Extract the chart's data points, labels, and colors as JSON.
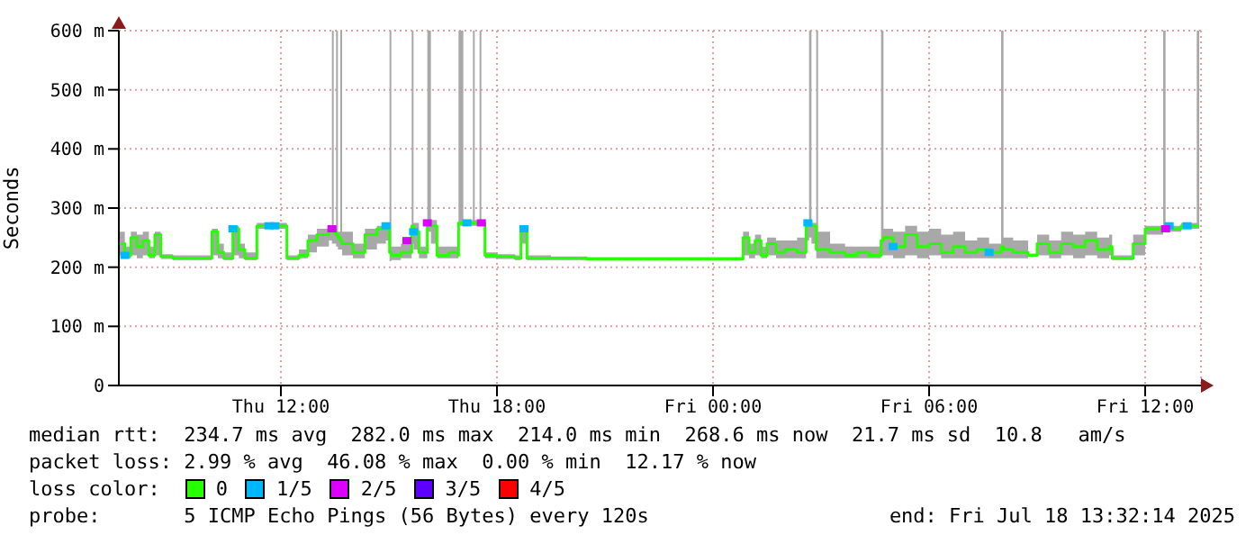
{
  "chart_data": {
    "type": "step",
    "ylabel": "Seconds",
    "legend_title": "loss color:",
    "legend": "bottom",
    "grid": true,
    "xlim": [
      "2025-07-17T07:30",
      "2025-07-18T13:33"
    ],
    "xticks": [
      {
        "value": "2025-07-17T12:00",
        "label": "Thu 12:00"
      },
      {
        "value": "2025-07-17T18:00",
        "label": "Thu 18:00"
      },
      {
        "value": "2025-07-18T00:00",
        "label": "Fri 00:00"
      },
      {
        "value": "2025-07-18T06:00",
        "label": "Fri 06:00"
      },
      {
        "value": "2025-07-18T12:00",
        "label": "Fri 12:00"
      }
    ],
    "ylim": [
      0,
      600
    ],
    "yticks": [
      0,
      {
        "value": 100,
        "label": "100 m"
      },
      {
        "value": 200,
        "label": "200 m"
      },
      {
        "value": 300,
        "label": "300 m"
      },
      {
        "value": 400,
        "label": "400 m"
      },
      {
        "value": 500,
        "label": "500 m"
      },
      {
        "value": 600,
        "label": "600 m"
      }
    ],
    "series": [
      {
        "name": "0",
        "color": "#26ff00",
        "x": [
          "2025-07-17T07:30",
          "2025-07-17T07:40",
          "2025-07-17T07:50",
          "2025-07-17T08:00",
          "2025-07-17T08:10",
          "2025-07-17T08:20",
          "2025-07-17T08:30",
          "2025-07-17T08:40",
          "2025-07-17T09:00",
          "2025-07-17T09:30",
          "2025-07-17T10:00",
          "2025-07-17T10:05",
          "2025-07-17T10:15",
          "2025-07-17T10:25",
          "2025-07-17T10:40",
          "2025-07-17T10:50",
          "2025-07-17T11:00",
          "2025-07-17T11:20",
          "2025-07-17T12:00",
          "2025-07-17T12:10",
          "2025-07-17T12:30",
          "2025-07-17T12:45",
          "2025-07-17T13:00",
          "2025-07-17T13:20",
          "2025-07-17T13:25",
          "2025-07-17T13:28",
          "2025-07-17T13:32",
          "2025-07-17T13:35",
          "2025-07-17T13:39",
          "2025-07-17T13:42",
          "2025-07-17T14:00",
          "2025-07-17T14:20",
          "2025-07-17T14:40",
          "2025-07-17T14:55",
          "2025-07-17T15:01",
          "2025-07-17T15:04",
          "2025-07-17T15:20",
          "2025-07-17T15:38",
          "2025-07-17T15:41",
          "2025-07-17T15:50",
          "2025-07-17T16:04",
          "2025-07-17T16:10",
          "2025-07-17T16:20",
          "2025-07-17T16:40",
          "2025-07-17T16:55",
          "2025-07-17T16:56",
          "2025-07-17T17:04",
          "2025-07-17T17:20",
          "2025-07-17T17:23",
          "2025-07-17T17:31",
          "2025-07-17T17:34",
          "2025-07-17T17:40",
          "2025-07-17T18:00",
          "2025-07-17T18:30",
          "2025-07-17T18:40",
          "2025-07-17T18:50",
          "2025-07-17T19:30",
          "2025-07-17T20:30",
          "2025-07-17T21:30",
          "2025-07-17T22:30",
          "2025-07-17T23:30",
          "2025-07-18T00:30",
          "2025-07-18T00:50",
          "2025-07-18T01:00",
          "2025-07-18T01:10",
          "2025-07-18T01:20",
          "2025-07-18T01:30",
          "2025-07-18T01:45",
          "2025-07-18T02:00",
          "2025-07-18T02:20",
          "2025-07-18T02:35",
          "2025-07-18T02:40",
          "2025-07-18T02:44",
          "2025-07-18T02:52",
          "2025-07-18T02:55",
          "2025-07-18T03:15",
          "2025-07-18T03:40",
          "2025-07-18T04:00",
          "2025-07-18T04:20",
          "2025-07-18T04:40",
          "2025-07-18T04:44",
          "2025-07-18T05:00",
          "2025-07-18T05:20",
          "2025-07-18T05:40",
          "2025-07-18T06:00",
          "2025-07-18T06:20",
          "2025-07-18T06:40",
          "2025-07-18T07:00",
          "2025-07-18T07:20",
          "2025-07-18T07:40",
          "2025-07-18T08:00",
          "2025-07-18T08:04",
          "2025-07-18T08:20",
          "2025-07-18T08:45",
          "2025-07-18T09:00",
          "2025-07-18T09:20",
          "2025-07-18T09:40",
          "2025-07-18T10:00",
          "2025-07-18T10:20",
          "2025-07-18T10:40",
          "2025-07-18T11:00",
          "2025-07-18T11:05",
          "2025-07-18T11:20",
          "2025-07-18T11:40",
          "2025-07-18T12:00",
          "2025-07-18T12:30",
          "2025-07-18T12:34",
          "2025-07-18T13:00",
          "2025-07-18T13:26",
          "2025-07-18T13:30"
        ],
        "values": [
          240,
          220,
          250,
          235,
          245,
          220,
          255,
          218,
          215,
          215,
          215,
          260,
          225,
          215,
          265,
          230,
          215,
          270,
          270,
          215,
          220,
          245,
          255,
          265,
          265,
          260,
          255,
          250,
          245,
          240,
          225,
          255,
          265,
          270,
          225,
          220,
          225,
          270,
          260,
          225,
          275,
          270,
          220,
          225,
          220,
          275,
          275,
          275,
          275,
          275,
          275,
          220,
          218,
          215,
          265,
          215,
          215,
          214,
          214,
          214,
          214,
          214,
          250,
          225,
          245,
          220,
          240,
          225,
          230,
          225,
          270,
          275,
          270,
          230,
          230,
          225,
          220,
          225,
          220,
          245,
          250,
          235,
          255,
          235,
          240,
          225,
          235,
          225,
          230,
          225,
          235,
          230,
          225,
          220,
          240,
          225,
          240,
          235,
          245,
          230,
          235,
          215,
          215,
          240,
          265,
          265,
          265,
          270,
          270,
          270
        ],
        "lower": [
          220,
          215,
          220,
          215,
          220,
          215,
          220,
          214,
          212,
          212,
          212,
          220,
          215,
          212,
          220,
          215,
          212,
          265,
          265,
          212,
          215,
          225,
          235,
          245,
          240,
          240,
          235,
          230,
          230,
          220,
          215,
          230,
          240,
          245,
          210,
          212,
          215,
          240,
          230,
          215,
          260,
          240,
          215,
          215,
          215,
          270,
          270,
          270,
          270,
          270,
          270,
          215,
          214,
          212,
          240,
          212,
          212,
          212,
          212,
          212,
          212,
          212,
          220,
          215,
          220,
          215,
          220,
          215,
          215,
          215,
          245,
          250,
          240,
          215,
          215,
          215,
          215,
          215,
          215,
          220,
          220,
          215,
          220,
          215,
          220,
          215,
          215,
          215,
          215,
          215,
          215,
          215,
          215,
          218,
          220,
          215,
          220,
          215,
          220,
          215,
          220,
          212,
          212,
          220,
          255,
          260,
          260,
          265,
          265,
          265
        ],
        "upper": [
          260,
          235,
          260,
          255,
          260,
          235,
          260,
          222,
          220,
          220,
          220,
          265,
          240,
          225,
          270,
          240,
          225,
          275,
          275,
          220,
          230,
          255,
          265,
          270,
          600,
          270,
          600,
          260,
          600,
          260,
          240,
          265,
          270,
          275,
          600,
          235,
          240,
          600,
          275,
          235,
          600,
          280,
          235,
          235,
          230,
          600,
          280,
          600,
          280,
          600,
          280,
          225,
          222,
          220,
          270,
          220,
          218,
          217,
          217,
          217,
          217,
          217,
          260,
          240,
          255,
          235,
          250,
          245,
          245,
          250,
          275,
          600,
          275,
          600,
          260,
          240,
          235,
          235,
          235,
          600,
          265,
          260,
          270,
          260,
          265,
          255,
          260,
          245,
          250,
          240,
          600,
          250,
          245,
          223,
          255,
          245,
          260,
          255,
          260,
          250,
          255,
          220,
          220,
          255,
          270,
          600,
          270,
          275,
          600,
          275
        ]
      },
      {
        "name": "1/5",
        "type": "scatter",
        "color": "#00b8ff",
        "x": [
          "2025-07-17T07:40",
          "2025-07-17T10:40",
          "2025-07-17T11:40",
          "2025-07-17T11:50",
          "2025-07-17T14:55",
          "2025-07-17T15:41",
          "2025-07-17T17:10",
          "2025-07-17T18:45",
          "2025-07-18T02:38",
          "2025-07-18T05:00",
          "2025-07-18T07:40",
          "2025-07-18T12:40",
          "2025-07-18T13:10"
        ],
        "values": [
          220,
          265,
          270,
          270,
          270,
          260,
          275,
          265,
          275,
          235,
          225,
          270,
          270
        ]
      },
      {
        "name": "2/5",
        "type": "scatter",
        "color": "#dd00ff",
        "x": [
          "2025-07-17T13:25",
          "2025-07-17T15:30",
          "2025-07-17T16:04",
          "2025-07-17T17:34",
          "2025-07-18T12:34"
        ],
        "values": [
          265,
          245,
          275,
          275,
          265
        ]
      },
      {
        "name": "3/5",
        "type": "scatter",
        "color": "#5e00ff"
      },
      {
        "name": "4/5",
        "type": "scatter",
        "color": "#ff0000"
      }
    ],
    "annotations": [
      "median rtt:  234.7 ms avg  282.0 ms max  214.0 ms min  268.6 ms now  21.7 ms sd  10.8   am/s",
      "packet loss: 2.99 % avg  46.08 % max  0.00 % min  12.17 % now",
      "probe:       5 ICMP Echo Pings (56 Bytes) every 120s",
      "end: Fri Jul 18 13:32:14 2025"
    ]
  }
}
